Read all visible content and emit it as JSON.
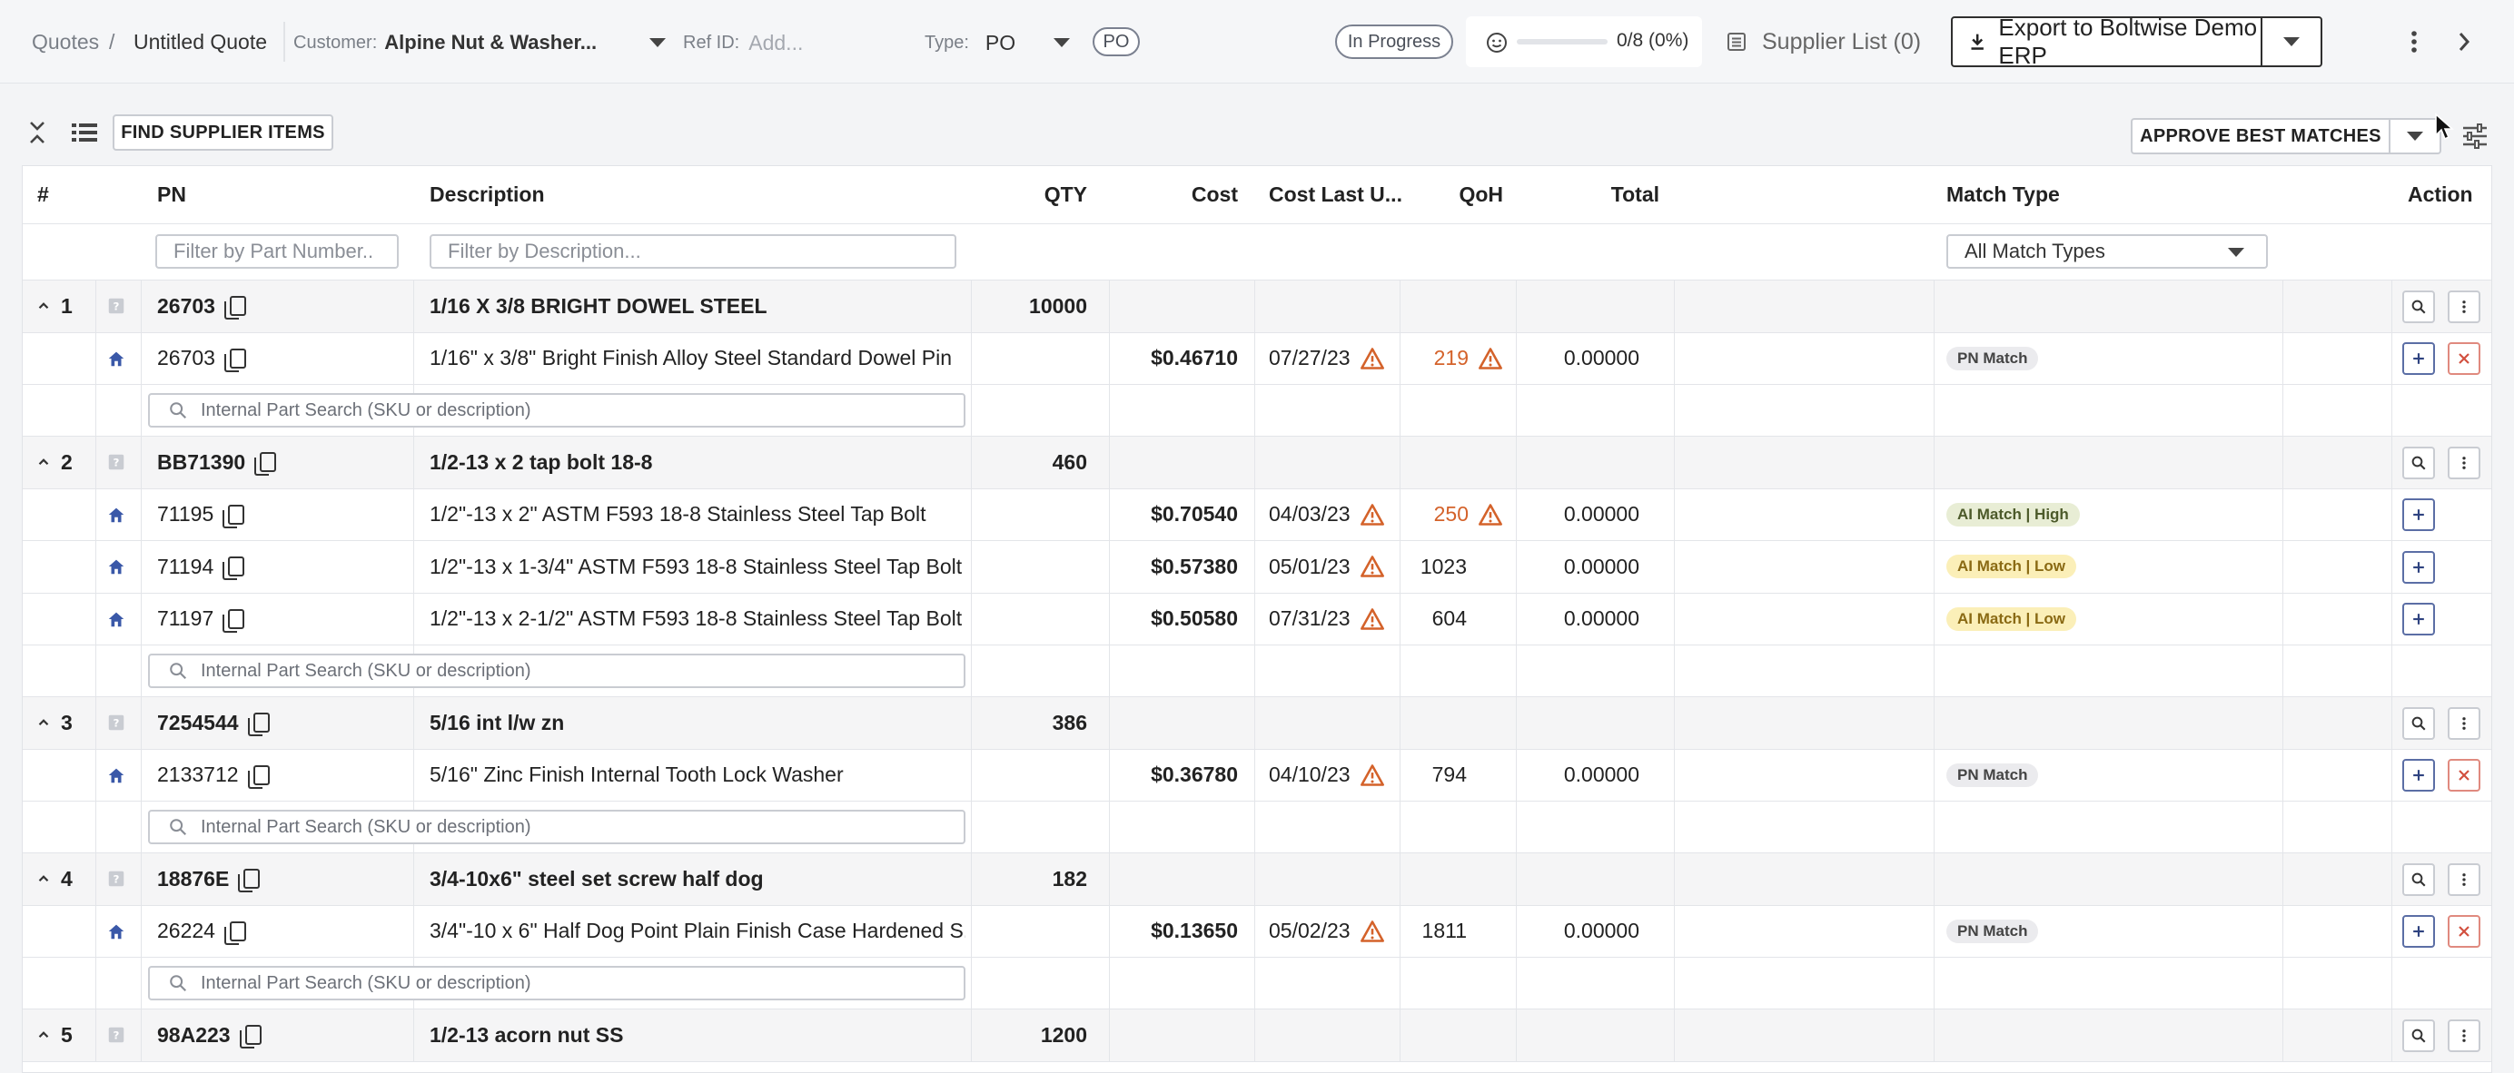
{
  "header": {
    "breadcrumb_root": "Quotes",
    "breadcrumb_sep": "/",
    "quote_title": "Untitled Quote",
    "customer_label": "Customer:",
    "customer_value": "Alpine Nut & Washer...",
    "ref_label": "Ref ID:",
    "ref_placeholder": "Add...",
    "type_label": "Type:",
    "type_value": "PO",
    "type_badge": "PO",
    "status_badge": "In Progress",
    "progress_text": "0/8 (0%)",
    "progress_fraction": 0,
    "supplier_list": "Supplier List (0)",
    "export_label": "Export to Boltwise Demo ERP"
  },
  "toolbar": {
    "find_label": "FIND SUPPLIER ITEMS",
    "approve_label": "APPROVE BEST MATCHES"
  },
  "table": {
    "headers": {
      "num": "#",
      "pn": "PN",
      "description": "Description",
      "qty": "QTY",
      "cost": "Cost",
      "cost_last": "Cost Last U...",
      "qoh": "QoH",
      "total": "Total",
      "match_type": "Match Type",
      "action": "Action"
    },
    "filters": {
      "pn_placeholder": "Filter by Part Number..",
      "desc_placeholder": "Filter by Description...",
      "match_select": "All Match Types"
    },
    "search_placeholder": "Internal Part Search (SKU or description)",
    "groups": [
      {
        "num": "1",
        "pn": "26703",
        "description": "1/16 X 3/8 BRIGHT DOWEL STEEL",
        "qty": "10000",
        "items": [
          {
            "pn": "26703",
            "description": "1/16\" x 3/8\" Bright Finish Alloy Steel Standard Dowel Pin",
            "cost": "$0.46710",
            "date": "07/27/23",
            "qoh": "219",
            "qoh_warn": true,
            "total": "0.00000",
            "match": "PN Match",
            "match_kind": "pn",
            "remove": true
          }
        ]
      },
      {
        "num": "2",
        "pn": "BB71390",
        "description": "1/2-13 x 2 tap bolt 18-8",
        "qty": "460",
        "items": [
          {
            "pn": "71195",
            "description": "1/2\"-13 x 2\" ASTM F593 18-8 Stainless Steel Tap Bolt",
            "cost": "$0.70540",
            "date": "04/03/23",
            "qoh": "250",
            "qoh_warn": true,
            "total": "0.00000",
            "match": "AI Match | High",
            "match_kind": "high",
            "remove": false
          },
          {
            "pn": "71194",
            "description": "1/2\"-13 x 1-3/4\" ASTM F593 18-8 Stainless Steel Tap Bolt",
            "cost": "$0.57380",
            "date": "05/01/23",
            "qoh": "1023",
            "qoh_warn": false,
            "total": "0.00000",
            "match": "AI Match | Low",
            "match_kind": "low",
            "remove": false
          },
          {
            "pn": "71197",
            "description": "1/2\"-13 x 2-1/2\" ASTM F593 18-8 Stainless Steel Tap Bolt",
            "cost": "$0.50580",
            "date": "07/31/23",
            "qoh": "604",
            "qoh_warn": false,
            "total": "0.00000",
            "match": "AI Match | Low",
            "match_kind": "low",
            "remove": false
          }
        ]
      },
      {
        "num": "3",
        "pn": "7254544",
        "description": "5/16 int l/w zn",
        "qty": "386",
        "items": [
          {
            "pn": "2133712",
            "description": "5/16\" Zinc Finish Internal Tooth Lock Washer",
            "cost": "$0.36780",
            "date": "04/10/23",
            "qoh": "794",
            "qoh_warn": false,
            "total": "0.00000",
            "match": "PN Match",
            "match_kind": "pn",
            "remove": true
          }
        ]
      },
      {
        "num": "4",
        "pn": "18876E",
        "description": "3/4-10x6\" steel set screw half dog",
        "qty": "182",
        "items": [
          {
            "pn": "26224",
            "description": "3/4\"-10 x 6\" Half Dog Point Plain Finish Case Hardened S...",
            "cost": "$0.13650",
            "date": "05/02/23",
            "qoh": "1811",
            "qoh_warn": false,
            "total": "0.00000",
            "match": "PN Match",
            "match_kind": "pn",
            "remove": true
          }
        ]
      },
      {
        "num": "5",
        "pn": "98A223",
        "description": "1/2-13 acorn nut SS",
        "qty": "1200",
        "items": []
      }
    ]
  }
}
